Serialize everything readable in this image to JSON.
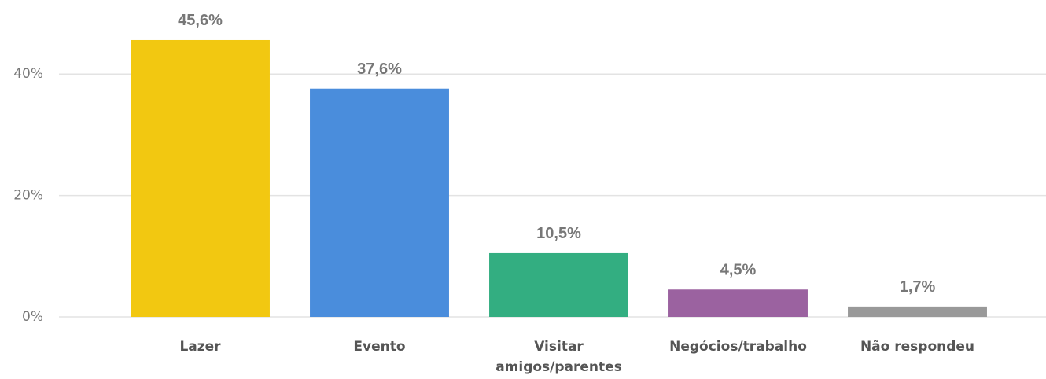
{
  "chart_data": {
    "type": "bar",
    "categories": [
      "Lazer",
      "Evento",
      "Visitar amigos/parentes",
      "Negócios/trabalho",
      "Não respondeu"
    ],
    "values": [
      45.6,
      37.6,
      10.5,
      4.5,
      1.7
    ],
    "value_labels": [
      "45,6%",
      "37,6%",
      "10,5%",
      "4,5%",
      "1,7%"
    ],
    "colors": [
      "#f2c811",
      "#4a8ddc",
      "#33ae81",
      "#9b62a0",
      "#999999"
    ],
    "ylim": [
      0,
      50
    ],
    "yticks": [
      {
        "value": 0,
        "label": "0%"
      },
      {
        "value": 20,
        "label": "20%"
      },
      {
        "value": 40,
        "label": "40%"
      }
    ],
    "grid": true
  }
}
